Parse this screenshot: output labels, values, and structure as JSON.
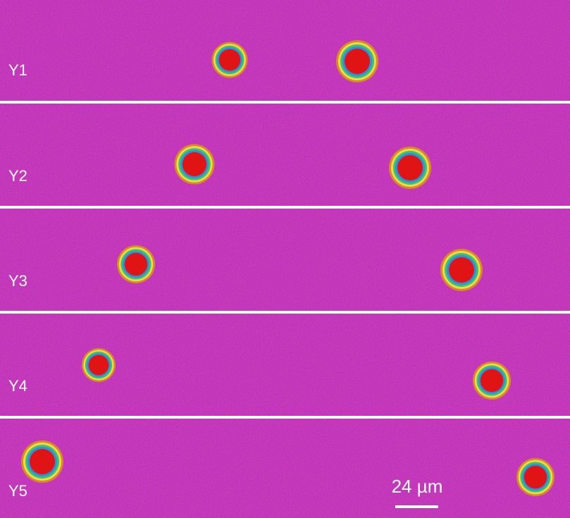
{
  "panels": [
    {
      "label": "Y1"
    },
    {
      "label": "Y2"
    },
    {
      "label": "Y3"
    },
    {
      "label": "Y4"
    },
    {
      "label": "Y5"
    }
  ],
  "scale_bar": {
    "label": "24 µm"
  }
}
